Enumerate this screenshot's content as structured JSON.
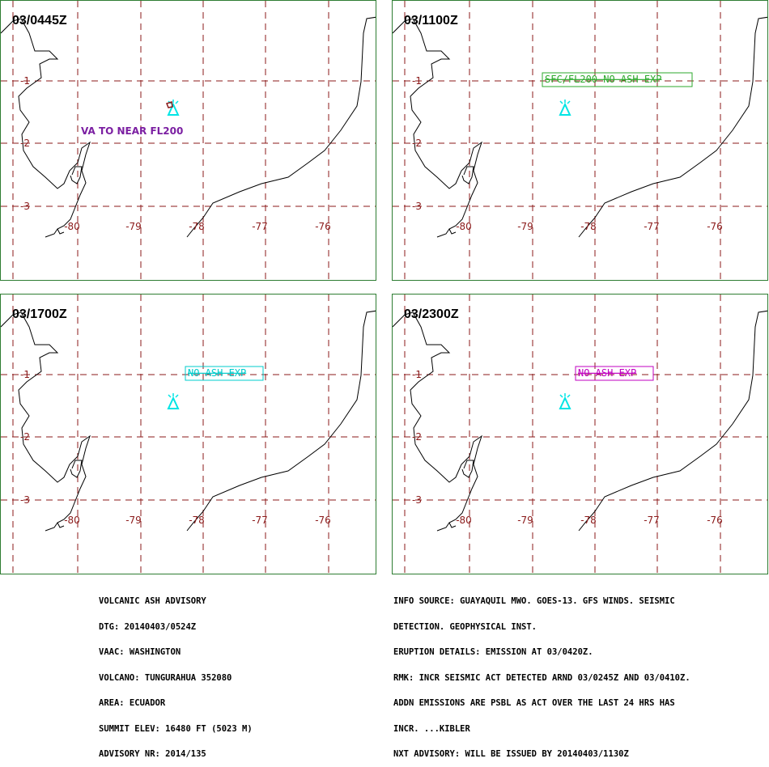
{
  "panels": [
    {
      "time": "03/0445Z",
      "label": "VA TO NEAR FL200",
      "label_color": "#7b1fa2",
      "boxed": false,
      "ash_marker": true
    },
    {
      "time": "03/1100Z",
      "label": "SFC/FL200 NO ASH EXP",
      "label_color": "#2eaa2e",
      "boxed": true,
      "ash_marker": false
    },
    {
      "time": "03/1700Z",
      "label": "NO ASH EXP",
      "label_color": "#00cccc",
      "boxed": true,
      "ash_marker": false
    },
    {
      "time": "03/2300Z",
      "label": "NO ASH EXP",
      "label_color": "#c000c0",
      "boxed": true,
      "ash_marker": false
    }
  ],
  "map": {
    "lat_labels": [
      "-1",
      "-2",
      "-3"
    ],
    "lon_labels": [
      "-80",
      "-79",
      "-78",
      "-77",
      "-76"
    ],
    "grid_color": "#8b1a1a",
    "volcano_icon": "volcano-icon",
    "volcano_color": "#00e5e5"
  },
  "advisory_left": [
    "VOLCANIC ASH ADVISORY",
    "DTG: 20140403/0524Z",
    "VAAC: WASHINGTON",
    "VOLCANO: TUNGURAHUA 352080",
    "AREA: ECUADOR",
    "SUMMIT ELEV: 16480 FT (5023 M)",
    "ADVISORY NR: 2014/135"
  ],
  "advisory_right": [
    "INFO SOURCE: GUAYAQUIL MWO. GOES-13. GFS WINDS. SEISMIC",
    "DETECTION. GEOPHYSICAL INST.",
    "ERUPTION DETAILS: EMISSION AT 03/0420Z.",
    "RMK: INCR SEISMIC ACT DETECTED ARND 03/0245Z AND 03/0410Z.",
    "ADDN EMISSIONS ARE PSBL AS ACT OVER THE LAST 24 HRS HAS",
    "INCR. ...KIBLER",
    "NXT ADVISORY: WILL BE ISSUED BY 20140403/1130Z"
  ]
}
